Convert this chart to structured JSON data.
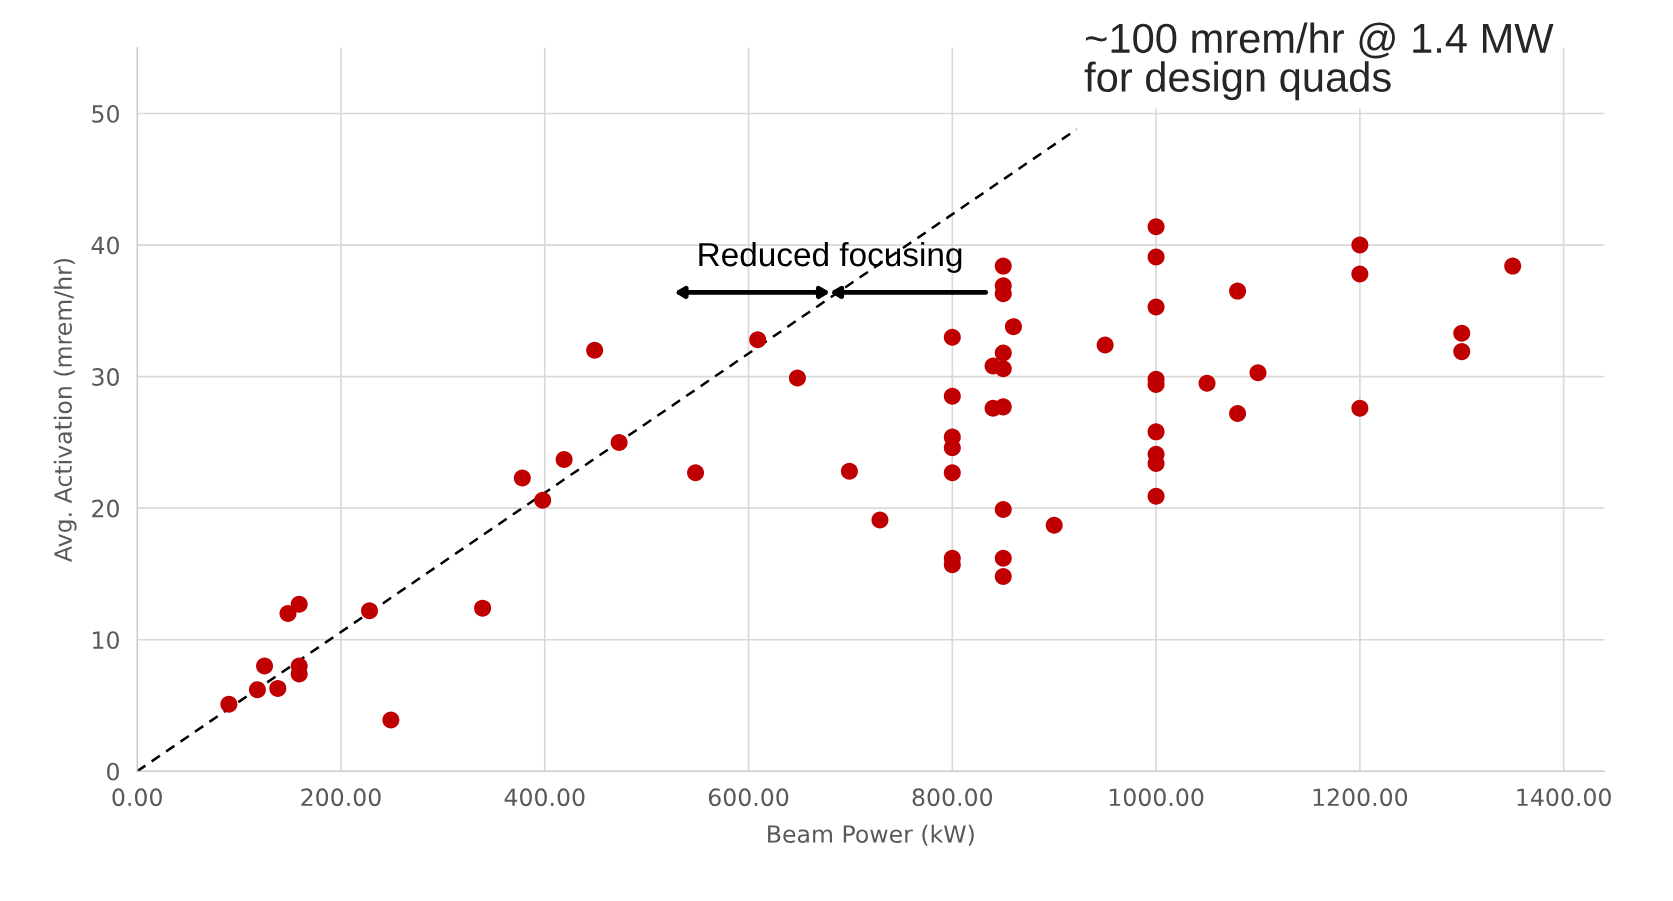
{
  "chart_data": {
    "type": "scatter",
    "xlabel": "Beam Power (kW)",
    "ylabel": "Avg. Activation (mrem/hr)",
    "xlim": [
      0,
      1440
    ],
    "ylim": [
      0,
      55
    ],
    "xticks": [
      {
        "value": 0,
        "label": "0.00"
      },
      {
        "value": 200,
        "label": "200.00"
      },
      {
        "value": 400,
        "label": "400.00"
      },
      {
        "value": 600,
        "label": "600.00"
      },
      {
        "value": 800,
        "label": "800.00"
      },
      {
        "value": 1000,
        "label": "1000.00"
      },
      {
        "value": 1200,
        "label": "1200.00"
      },
      {
        "value": 1400,
        "label": "1400.00"
      }
    ],
    "yticks": [
      0,
      10,
      20,
      30,
      40,
      50
    ],
    "grid": true,
    "marker": "circle",
    "series": [
      {
        "color": "#c00000",
        "x": [
          90,
          118,
          125,
          138,
          148,
          159,
          159,
          159,
          228,
          249,
          339,
          378,
          398,
          419,
          449,
          473,
          548,
          609,
          648,
          699,
          729,
          800,
          800,
          800,
          800,
          800,
          800,
          800,
          840,
          840,
          850,
          850,
          850,
          860,
          850,
          850,
          850,
          850,
          850,
          850,
          900,
          950,
          1000,
          1000,
          1000,
          1000,
          1000,
          1000,
          1000,
          1000,
          1000,
          1050,
          1080,
          1080,
          1100,
          1200,
          1200,
          1200,
          1300,
          1300,
          1350
        ],
        "values": [
          5.1,
          6.2,
          8.0,
          6.3,
          12.0,
          12.7,
          8.0,
          7.4,
          12.2,
          3.9,
          12.4,
          22.3,
          20.6,
          23.7,
          32.0,
          25.0,
          22.7,
          32.8,
          29.9,
          22.8,
          19.1,
          33.0,
          28.5,
          25.4,
          24.6,
          22.7,
          16.2,
          15.7,
          30.8,
          27.6,
          38.4,
          36.9,
          36.3,
          33.8,
          31.8,
          30.6,
          27.7,
          19.9,
          16.2,
          14.8,
          18.7,
          32.4,
          41.4,
          39.1,
          35.3,
          29.8,
          29.4,
          25.8,
          24.1,
          23.4,
          20.9,
          29.5,
          36.5,
          27.2,
          30.3,
          40.0,
          37.8,
          27.6,
          33.3,
          31.9,
          38.4
        ]
      },
      {
        "type": "line",
        "color": "#000000",
        "line_style": "dashed",
        "marker": "none",
        "x": [
          0,
          922
        ],
        "values": [
          0,
          48.8
        ]
      }
    ],
    "annotations": [
      {
        "text": "Reduced focusing",
        "x": 680,
        "y": 36.4
      },
      "~100 mrem/hr @ 1.4 MW\nfor design quads"
    ]
  }
}
